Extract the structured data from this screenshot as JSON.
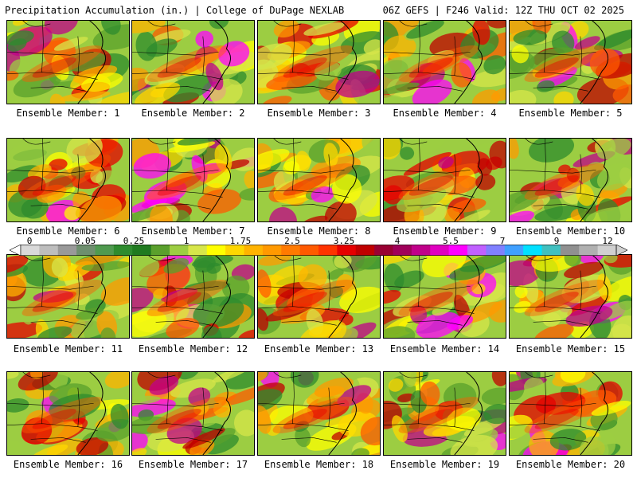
{
  "header": {
    "left": "Precipitation Accumulation (in.) | College of DuPage NEXLAB",
    "right": "06Z GEFS | F246 Valid: 12Z THU OCT 02 2025"
  },
  "members": [
    {
      "label": "Ensemble Member: 1"
    },
    {
      "label": "Ensemble Member: 2"
    },
    {
      "label": "Ensemble Member: 3"
    },
    {
      "label": "Ensemble Member: 4"
    },
    {
      "label": "Ensemble Member: 5"
    },
    {
      "label": "Ensemble Member: 6"
    },
    {
      "label": "Ensemble Member: 7"
    },
    {
      "label": "Ensemble Member: 8"
    },
    {
      "label": "Ensemble Member: 9"
    },
    {
      "label": "Ensemble Member: 10"
    },
    {
      "label": "Ensemble Member: 11"
    },
    {
      "label": "Ensemble Member: 12"
    },
    {
      "label": "Ensemble Member: 13"
    },
    {
      "label": "Ensemble Member: 14"
    },
    {
      "label": "Ensemble Member: 15"
    },
    {
      "label": "Ensemble Member: 16"
    },
    {
      "label": "Ensemble Member: 17"
    },
    {
      "label": "Ensemble Member: 18"
    },
    {
      "label": "Ensemble Member: 19"
    },
    {
      "label": "Ensemble Member: 20"
    }
  ],
  "colorbar": {
    "tick_labels": [
      "0",
      "0.05",
      "0.25",
      "1",
      "1.75",
      "2.5",
      "3.25",
      "4",
      "5.5",
      "7",
      "9",
      "12"
    ],
    "colors": [
      "#d9d9d9",
      "#bdbdbd",
      "#999999",
      "#6e8f6e",
      "#4f9a4f",
      "#2e8b2e",
      "#1f7a1f",
      "#5aa02c",
      "#9ccd42",
      "#d7e64a",
      "#ffff00",
      "#ffd700",
      "#ffb300",
      "#ff9900",
      "#ff7a00",
      "#ff5a00",
      "#ff3300",
      "#e60000",
      "#c00000",
      "#990033",
      "#a0005a",
      "#c0008a",
      "#e000c0",
      "#ff00ff",
      "#c060ff",
      "#8080ff",
      "#40a0ff",
      "#00e0ff",
      "#40c0c0",
      "#909090",
      "#b0b0b0",
      "#d0d0d0"
    ]
  }
}
